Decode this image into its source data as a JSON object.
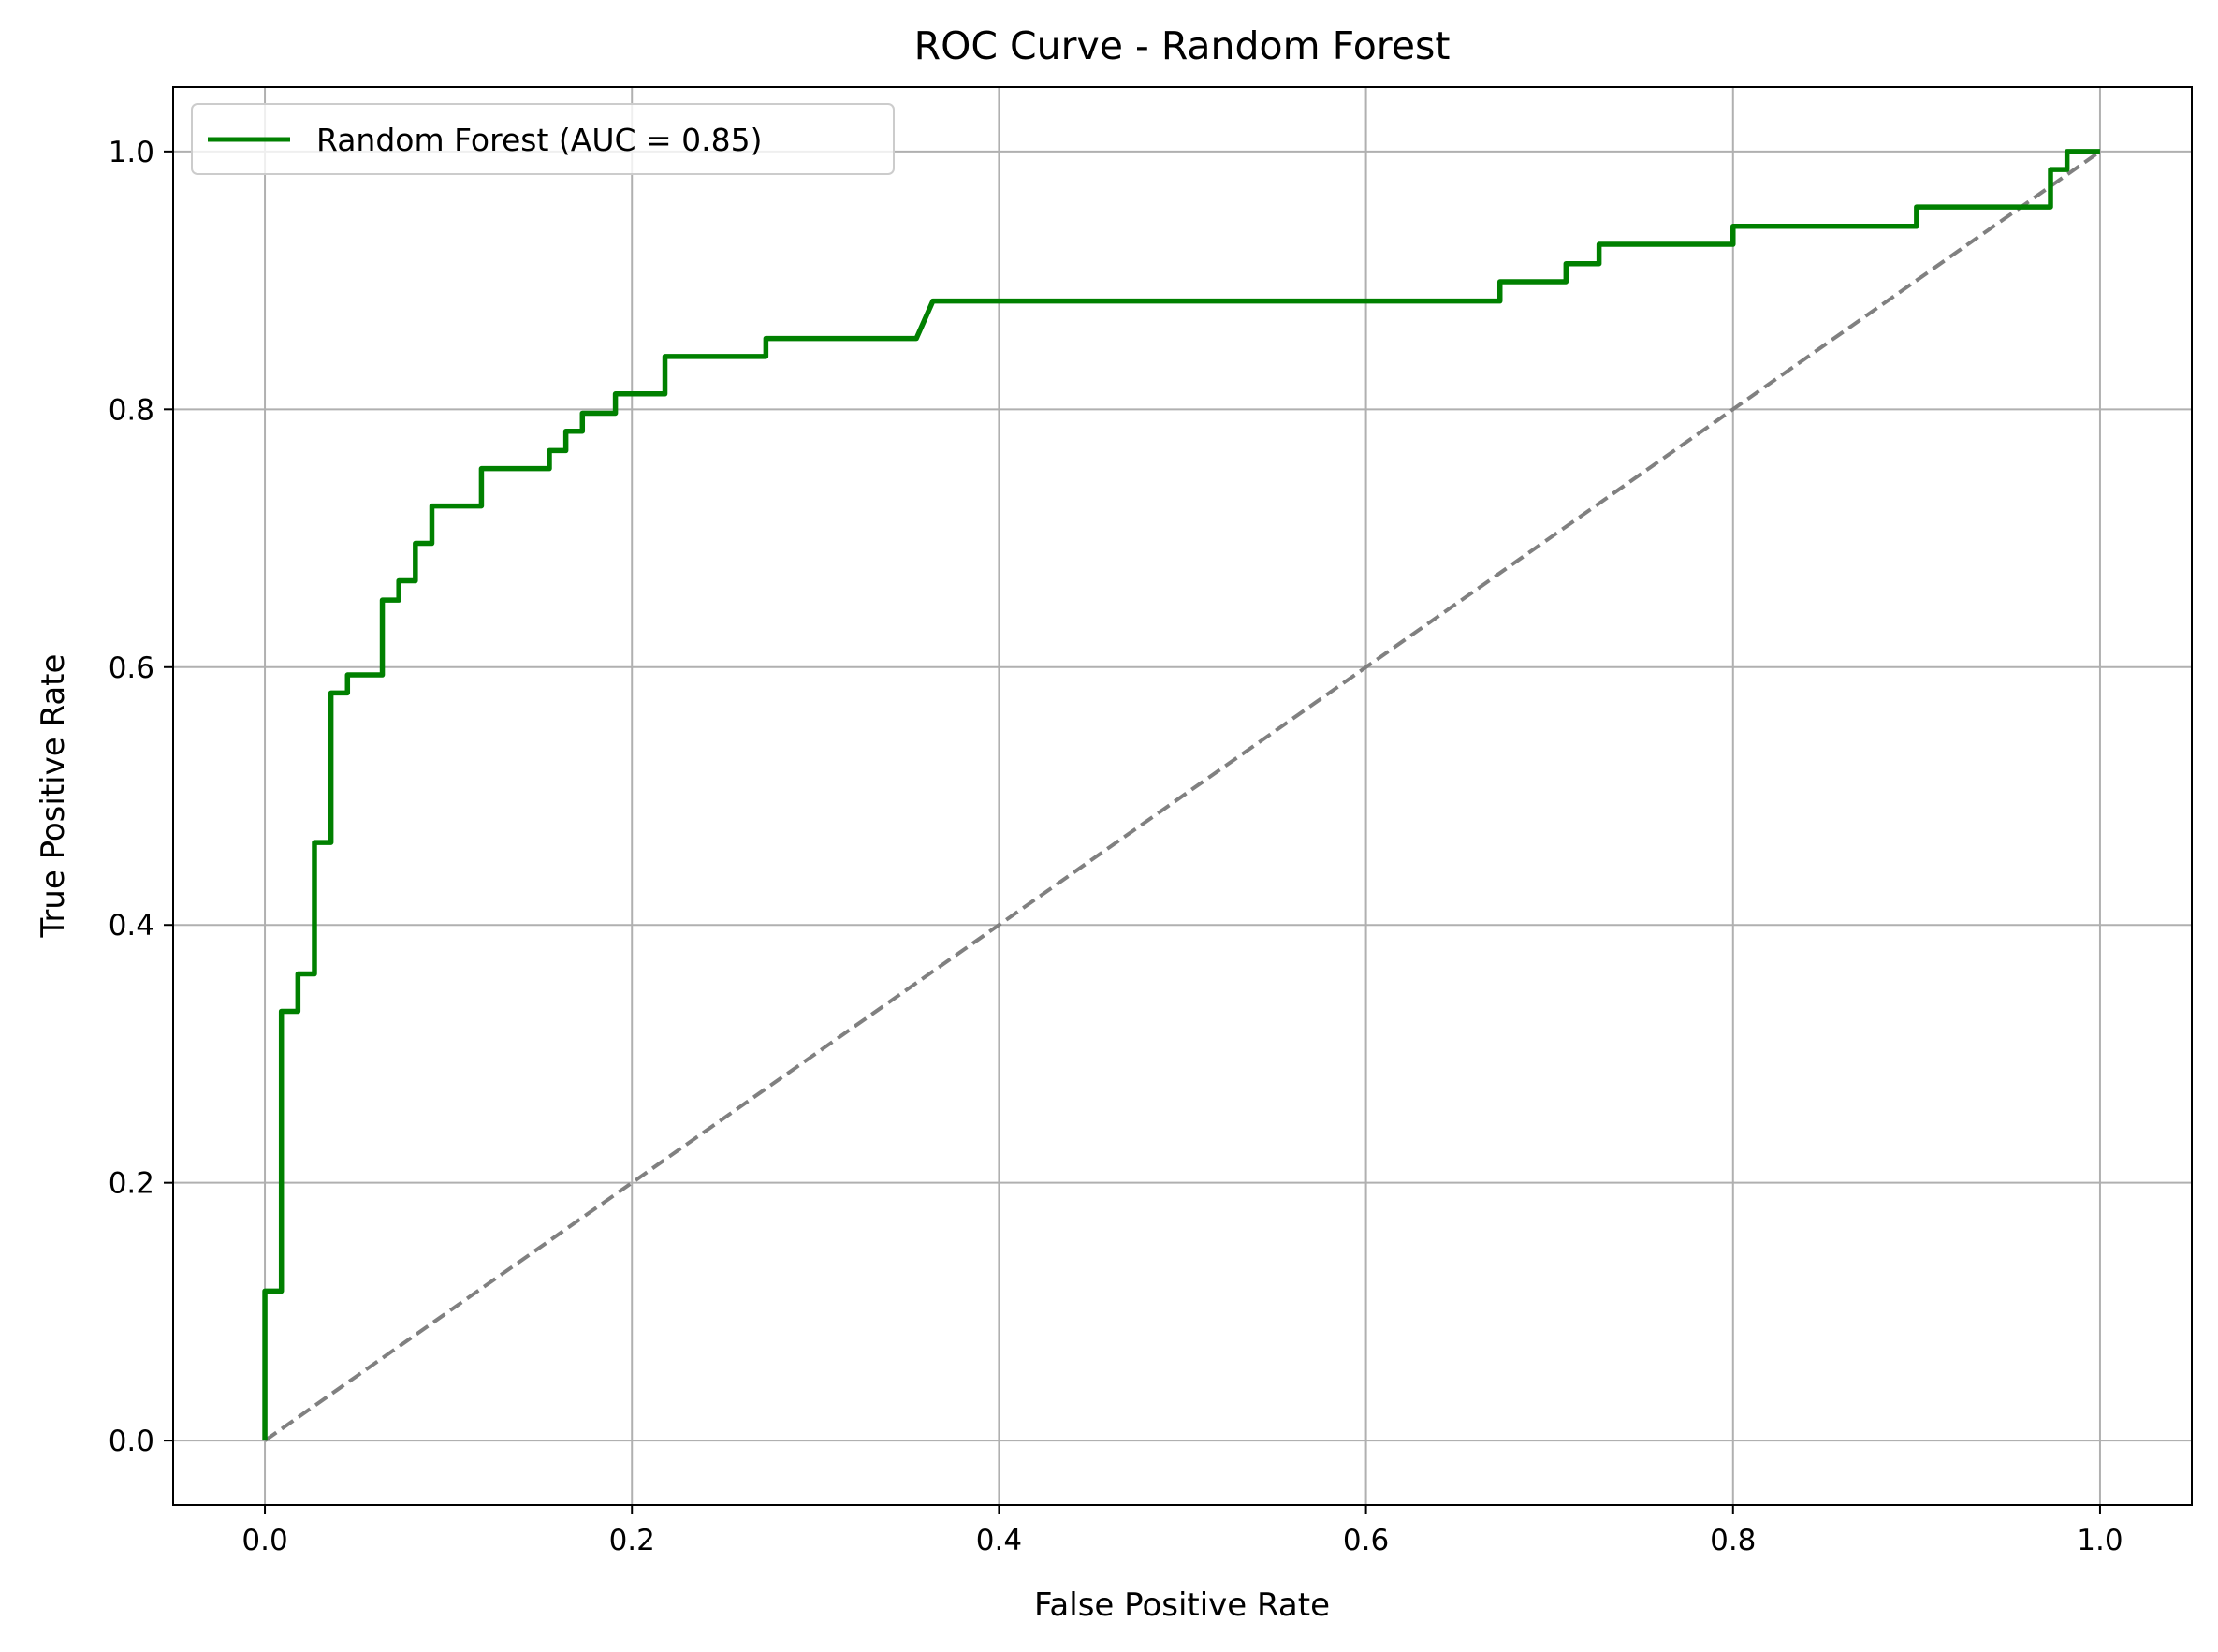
{
  "chart_data": {
    "type": "line",
    "title": "ROC Curve - Random Forest",
    "xlabel": "False Positive Rate",
    "ylabel": "True Positive Rate",
    "xlim": [
      -0.05,
      1.05
    ],
    "ylim": [
      -0.05,
      1.05
    ],
    "xticks": [
      0.0,
      0.2,
      0.4,
      0.6,
      0.8,
      1.0
    ],
    "xtick_labels": [
      "0.0",
      "0.2",
      "0.4",
      "0.6",
      "0.8",
      "1.0"
    ],
    "yticks": [
      0.0,
      0.2,
      0.4,
      0.6,
      0.8,
      1.0
    ],
    "ytick_labels": [
      "0.0",
      "0.2",
      "0.4",
      "0.6",
      "0.8",
      "1.0"
    ],
    "grid": true,
    "legend_position": "upper left",
    "series": [
      {
        "name": "Random Forest (AUC = 0.85)",
        "color": "#008000",
        "style": "solid",
        "x": [
          0.0,
          0.0,
          0.009,
          0.009,
          0.018,
          0.018,
          0.027,
          0.027,
          0.036,
          0.036,
          0.045,
          0.045,
          0.064,
          0.064,
          0.073,
          0.073,
          0.082,
          0.082,
          0.091,
          0.091,
          0.118,
          0.118,
          0.155,
          0.155,
          0.164,
          0.164,
          0.173,
          0.173,
          0.191,
          0.191,
          0.218,
          0.218,
          0.273,
          0.273,
          0.355,
          0.364,
          0.673,
          0.673,
          0.709,
          0.709,
          0.727,
          0.727,
          0.8,
          0.8,
          0.9,
          0.9,
          0.973,
          0.973,
          0.982,
          0.982,
          1.0
        ],
        "y": [
          0.0,
          0.116,
          0.116,
          0.333,
          0.333,
          0.362,
          0.362,
          0.464,
          0.464,
          0.58,
          0.58,
          0.594,
          0.594,
          0.652,
          0.652,
          0.667,
          0.667,
          0.696,
          0.696,
          0.725,
          0.725,
          0.754,
          0.754,
          0.768,
          0.768,
          0.783,
          0.783,
          0.797,
          0.797,
          0.812,
          0.812,
          0.841,
          0.841,
          0.855,
          0.855,
          0.884,
          0.884,
          0.899,
          0.899,
          0.913,
          0.913,
          0.928,
          0.928,
          0.942,
          0.942,
          0.957,
          0.957,
          0.986,
          0.986,
          1.0,
          1.0
        ]
      },
      {
        "color": "#808080",
        "style": "dashed",
        "x": [
          0.0,
          1.0
        ],
        "y": [
          0.0,
          1.0
        ]
      }
    ]
  }
}
